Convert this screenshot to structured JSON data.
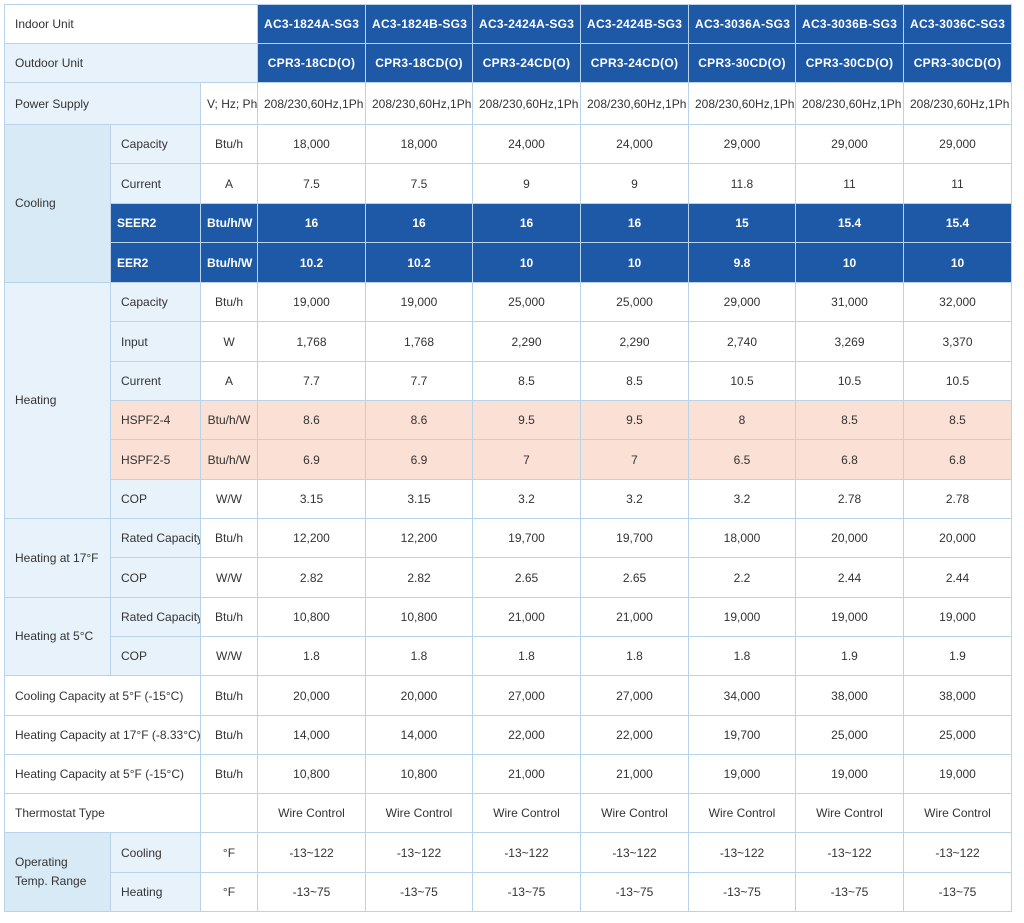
{
  "header": {
    "indoor_label": "Indoor Unit",
    "outdoor_label": "Outdoor Unit",
    "indoor_models": [
      "AC3-1824A-SG3",
      "AC3-1824B-SG3",
      "AC3-2424A-SG3",
      "AC3-2424B-SG3",
      "AC3-3036A-SG3",
      "AC3-3036B-SG3",
      "AC3-3036C-SG3"
    ],
    "outdoor_models": [
      "CPR3-18CD(O)",
      "CPR3-18CD(O)",
      "CPR3-24CD(O)",
      "CPR3-24CD(O)",
      "CPR3-30CD(O)",
      "CPR3-30CD(O)",
      "CPR3-30CD(O)"
    ]
  },
  "power_supply": {
    "label": "Power Supply",
    "unit": "V; Hz; Ph",
    "values": [
      "208/230,60Hz,1Ph",
      "208/230,60Hz,1Ph",
      "208/230,60Hz,1Ph",
      "208/230,60Hz,1Ph",
      "208/230,60Hz,1Ph",
      "208/230,60Hz,1Ph",
      "208/230,60Hz,1Ph"
    ]
  },
  "cooling": {
    "label": "Cooling",
    "rows": [
      {
        "label": "Capacity",
        "unit": "Btu/h",
        "values": [
          "18,000",
          "18,000",
          "24,000",
          "24,000",
          "29,000",
          "29,000",
          "29,000"
        ]
      },
      {
        "label": "Current",
        "unit": "A",
        "values": [
          "7.5",
          "7.5",
          "9",
          "9",
          "11.8",
          "11",
          "11"
        ]
      },
      {
        "label": "SEER2",
        "unit": "Btu/h/W",
        "values": [
          "16",
          "16",
          "16",
          "16",
          "15",
          "15.4",
          "15.4"
        ]
      },
      {
        "label": "EER2",
        "unit": "Btu/h/W",
        "values": [
          "10.2",
          "10.2",
          "10",
          "10",
          "9.8",
          "10",
          "10"
        ]
      }
    ]
  },
  "heating": {
    "label": "Heating",
    "rows": [
      {
        "label": "Capacity",
        "unit": "Btu/h",
        "values": [
          "19,000",
          "19,000",
          "25,000",
          "25,000",
          "29,000",
          "31,000",
          "32,000"
        ]
      },
      {
        "label": "Input",
        "unit": "W",
        "values": [
          "1,768",
          "1,768",
          "2,290",
          "2,290",
          "2,740",
          "3,269",
          "3,370"
        ]
      },
      {
        "label": "Current",
        "unit": "A",
        "values": [
          "7.7",
          "7.7",
          "8.5",
          "8.5",
          "10.5",
          "10.5",
          "10.5"
        ]
      },
      {
        "label": "HSPF2-4",
        "unit": "Btu/h/W",
        "values": [
          "8.6",
          "8.6",
          "9.5",
          "9.5",
          "8",
          "8.5",
          "8.5"
        ]
      },
      {
        "label": "HSPF2-5",
        "unit": "Btu/h/W",
        "values": [
          "6.9",
          "6.9",
          "7",
          "7",
          "6.5",
          "6.8",
          "6.8"
        ]
      },
      {
        "label": "COP",
        "unit": "W/W",
        "values": [
          "3.15",
          "3.15",
          "3.2",
          "3.2",
          "3.2",
          "2.78",
          "2.78"
        ]
      }
    ]
  },
  "heating_17f": {
    "label": "Heating at 17°F",
    "rows": [
      {
        "label": "Rated Capacity",
        "unit": "Btu/h",
        "values": [
          "12,200",
          "12,200",
          "19,700",
          "19,700",
          "18,000",
          "20,000",
          "20,000"
        ]
      },
      {
        "label": "COP",
        "unit": "W/W",
        "values": [
          "2.82",
          "2.82",
          "2.65",
          "2.65",
          "2.2",
          "2.44",
          "2.44"
        ]
      }
    ]
  },
  "heating_5c": {
    "label": "Heating at 5°C",
    "rows": [
      {
        "label": "Rated Capacity",
        "unit": "Btu/h",
        "values": [
          "10,800",
          "10,800",
          "21,000",
          "21,000",
          "19,000",
          "19,000",
          "19,000"
        ]
      },
      {
        "label": "COP",
        "unit": "W/W",
        "values": [
          "1.8",
          "1.8",
          "1.8",
          "1.8",
          "1.8",
          "1.9",
          "1.9"
        ]
      }
    ]
  },
  "wide_rows": [
    {
      "label": "Cooling Capacity at 5°F (-15°C)",
      "unit": "Btu/h",
      "values": [
        "20,000",
        "20,000",
        "27,000",
        "27,000",
        "34,000",
        "38,000",
        "38,000"
      ]
    },
    {
      "label": "Heating Capacity at 17°F  (-8.33°C)",
      "unit": "Btu/h",
      "values": [
        "14,000",
        "14,000",
        "22,000",
        "22,000",
        "19,700",
        "25,000",
        "25,000"
      ]
    },
    {
      "label": "Heating Capacity at 5°F (-15°C)",
      "unit": "Btu/h",
      "values": [
        "10,800",
        "10,800",
        "21,000",
        "21,000",
        "19,000",
        "19,000",
        "19,000"
      ]
    },
    {
      "label": "Thermostat Type",
      "unit": "",
      "values": [
        "Wire Control",
        "Wire Control",
        "Wire Control",
        "Wire Control",
        "Wire Control",
        "Wire Control",
        "Wire Control"
      ]
    }
  ],
  "operating": {
    "label_line1": "Operating",
    "label_line2": "Temp. Range",
    "rows": [
      {
        "label": "Cooling",
        "unit": "°F",
        "values": [
          "-13~122",
          "-13~122",
          "-13~122",
          "-13~122",
          "-13~122",
          "-13~122",
          "-13~122"
        ]
      },
      {
        "label": "Heating",
        "unit": "°F",
        "values": [
          "-13~75",
          "-13~75",
          "-13~75",
          "-13~75",
          "-13~75",
          "-13~75",
          "-13~75"
        ]
      }
    ]
  },
  "colors": {
    "header_blue": "#1e59a8",
    "highlight_blue": "#1e59a8",
    "highlight_pink": "#fbe0d5",
    "label_background": "#e8f2fb",
    "border": "#b9d4ea"
  }
}
